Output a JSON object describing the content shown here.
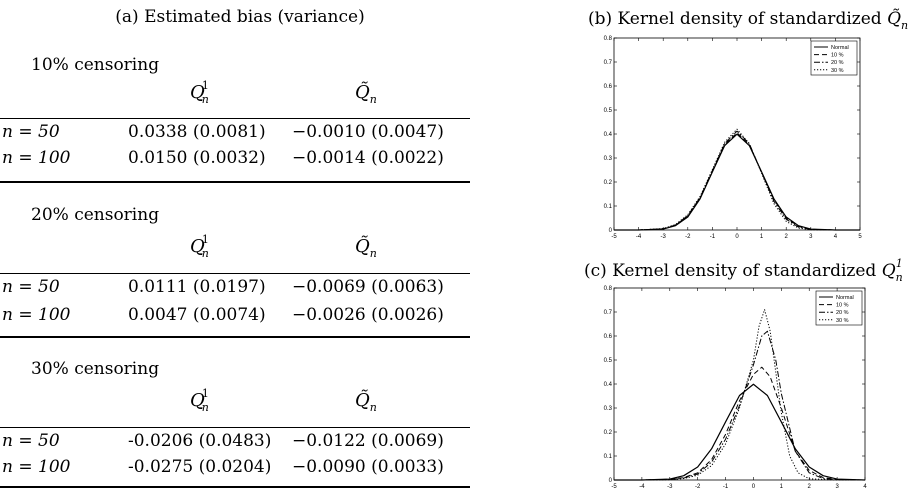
{
  "table": {
    "title": "(a) Estimated bias (variance)",
    "col_q1": "Q",
    "col_q1_sub": "n",
    "col_q1_sup": "1",
    "col_qt": "Q̃",
    "col_qt_sub": "n",
    "sections": [
      {
        "label": "10% censoring",
        "rows": [
          {
            "n": "n = 50",
            "q1": "0.0338 (0.0081)",
            "qt": "−0.0010 (0.0047)"
          },
          {
            "n": "n = 100",
            "q1": "0.0150 (0.0032)",
            "qt": "−0.0014 (0.0022)"
          }
        ]
      },
      {
        "label": "20% censoring",
        "rows": [
          {
            "n": "n = 50",
            "q1": "0.0111 (0.0197)",
            "qt": "−0.0069 (0.0063)"
          },
          {
            "n": "n = 100",
            "q1": "0.0047 (0.0074)",
            "qt": "−0.0026 (0.0026)"
          }
        ]
      },
      {
        "label": "30% censoring",
        "rows": [
          {
            "n": "n = 50",
            "q1": "-0.0206 (0.0483)",
            "qt": "−0.0122 (0.0069)"
          },
          {
            "n": "n = 100",
            "q1": "-0.0275 (0.0204)",
            "qt": "−0.0090 (0.0033)"
          }
        ]
      }
    ]
  },
  "chart_data": [
    {
      "type": "line",
      "title": "(b) Kernel density of standardized Q̃n",
      "title_prefix": "(b) Kernel density of standardized ",
      "title_math": "Q̃",
      "title_math_sub": "n",
      "xlim": [
        -5,
        5
      ],
      "ylim": [
        0,
        0.8
      ],
      "xticks": [
        "-5",
        "-4",
        "-3",
        "-2",
        "-1",
        "0",
        "1",
        "2",
        "3",
        "4",
        "5"
      ],
      "yticks": [
        "0",
        "0.1",
        "0.2",
        "0.3",
        "0.4",
        "0.5",
        "0.6",
        "0.7",
        "0.8"
      ],
      "legend": "top-right",
      "series": [
        {
          "name": "Normal",
          "dash": "solid",
          "x": [
            -5,
            -4,
            -3,
            -2.5,
            -2,
            -1.5,
            -1,
            -0.5,
            0,
            0.5,
            1,
            1.5,
            2,
            2.5,
            3,
            4,
            5
          ],
          "y": [
            0,
            0,
            0.004,
            0.018,
            0.054,
            0.13,
            0.242,
            0.352,
            0.399,
            0.352,
            0.242,
            0.13,
            0.054,
            0.018,
            0.004,
            0,
            0
          ]
        },
        {
          "name": "10 %",
          "dash": "dashed",
          "x": [
            -5,
            -4,
            -3,
            -2.5,
            -2,
            -1.5,
            -1,
            -0.5,
            0,
            0.5,
            1,
            1.5,
            2,
            2.5,
            3,
            4,
            5
          ],
          "y": [
            0,
            0,
            0.005,
            0.02,
            0.058,
            0.132,
            0.244,
            0.356,
            0.405,
            0.356,
            0.24,
            0.126,
            0.05,
            0.015,
            0.003,
            0,
            0
          ]
        },
        {
          "name": "20 %",
          "dash": "dashdot",
          "x": [
            -5,
            -4,
            -3,
            -2.5,
            -2,
            -1.5,
            -1,
            -0.5,
            0,
            0.5,
            1,
            1.5,
            2,
            2.5,
            3,
            4,
            5
          ],
          "y": [
            0,
            0,
            0.005,
            0.021,
            0.06,
            0.136,
            0.248,
            0.36,
            0.412,
            0.36,
            0.24,
            0.12,
            0.045,
            0.012,
            0.002,
            0,
            0
          ]
        },
        {
          "name": "30 %",
          "dash": "dotted",
          "x": [
            -5,
            -4,
            -3,
            -2.5,
            -2,
            -1.5,
            -1,
            -0.5,
            0,
            0.5,
            1,
            1.5,
            2,
            2.5,
            3,
            4,
            5
          ],
          "y": [
            0,
            0,
            0.006,
            0.023,
            0.064,
            0.14,
            0.252,
            0.366,
            0.42,
            0.36,
            0.236,
            0.11,
            0.036,
            0.008,
            0.001,
            0,
            0
          ]
        }
      ]
    },
    {
      "type": "line",
      "title": "(c) Kernel density of standardized Qn1",
      "title_prefix": "(c) Kernel density of standardized ",
      "title_math": "Q",
      "title_math_sub": "n",
      "title_math_sup": "1",
      "xlim": [
        -5,
        4
      ],
      "ylim": [
        0,
        0.8
      ],
      "xticks": [
        "-5",
        "-4",
        "-3",
        "-2",
        "-1",
        "0",
        "1",
        "2",
        "3",
        "4"
      ],
      "yticks": [
        "0",
        "0.1",
        "0.2",
        "0.3",
        "0.4",
        "0.5",
        "0.6",
        "0.7",
        "0.8"
      ],
      "legend": "top-right",
      "series": [
        {
          "name": "Normal",
          "dash": "solid",
          "x": [
            -5,
            -4,
            -3,
            -2.5,
            -2,
            -1.5,
            -1,
            -0.5,
            0,
            0.5,
            1,
            1.5,
            2,
            2.5,
            3,
            4
          ],
          "y": [
            0,
            0,
            0.004,
            0.018,
            0.054,
            0.13,
            0.242,
            0.352,
            0.399,
            0.352,
            0.242,
            0.13,
            0.054,
            0.018,
            0.004,
            0
          ]
        },
        {
          "name": "10 %",
          "dash": "dashed",
          "x": [
            -5,
            -4,
            -3,
            -2.5,
            -2,
            -1.5,
            -1,
            -0.5,
            0,
            0.3,
            0.6,
            1,
            1.5,
            2,
            2.5,
            3,
            4
          ],
          "y": [
            0,
            0,
            0.003,
            0.01,
            0.03,
            0.085,
            0.19,
            0.33,
            0.44,
            0.47,
            0.43,
            0.3,
            0.12,
            0.04,
            0.01,
            0.002,
            0
          ]
        },
        {
          "name": "20 %",
          "dash": "dashdot",
          "x": [
            -5,
            -4,
            -3,
            -2.5,
            -2,
            -1.5,
            -1,
            -0.5,
            0,
            0.3,
            0.5,
            0.8,
            1,
            1.5,
            2,
            2.5,
            3,
            4
          ],
          "y": [
            0,
            0,
            0.002,
            0.008,
            0.025,
            0.075,
            0.17,
            0.31,
            0.48,
            0.6,
            0.62,
            0.5,
            0.36,
            0.12,
            0.03,
            0.006,
            0.001,
            0
          ]
        },
        {
          "name": "30 %",
          "dash": "dotted",
          "x": [
            -5,
            -4,
            -3,
            -2.5,
            -2,
            -1.5,
            -1,
            -0.5,
            0,
            0.2,
            0.4,
            0.6,
            0.8,
            1,
            1.3,
            1.6,
            2,
            3,
            4
          ],
          "y": [
            0,
            0,
            0.001,
            0.006,
            0.02,
            0.06,
            0.15,
            0.3,
            0.5,
            0.64,
            0.71,
            0.62,
            0.45,
            0.28,
            0.1,
            0.03,
            0.005,
            0,
            0
          ]
        }
      ]
    }
  ]
}
